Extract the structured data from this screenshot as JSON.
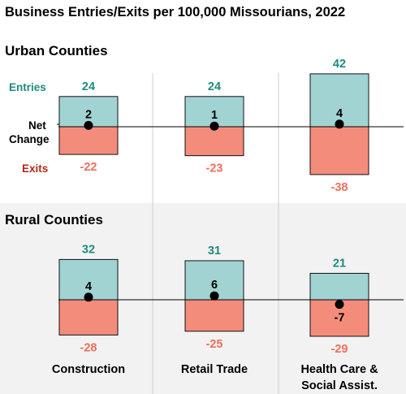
{
  "chart_data": {
    "type": "bar",
    "title": "Business Entries/Exits per 100,000 Missourians, 2022",
    "categories": [
      "Construction",
      "Retail Trade",
      "Health Care & Social Assist."
    ],
    "category_lines": [
      [
        "Construction"
      ],
      [
        "Retail Trade"
      ],
      [
        "Health Care &",
        "Social Assist."
      ]
    ],
    "legend": {
      "entries": "Entries",
      "net_line1": "Net",
      "net_line2": "Change",
      "exits": "Exits"
    },
    "panels": [
      {
        "name": "Urban Counties",
        "series": [
          {
            "name": "Entries",
            "values": [
              24,
              24,
              42
            ]
          },
          {
            "name": "Exits",
            "values": [
              -22,
              -23,
              -38
            ]
          },
          {
            "name": "Net Change",
            "values": [
              2,
              1,
              4
            ]
          }
        ]
      },
      {
        "name": "Rural Counties",
        "series": [
          {
            "name": "Entries",
            "values": [
              32,
              31,
              21
            ]
          },
          {
            "name": "Exits",
            "values": [
              -28,
              -25,
              -29
            ]
          },
          {
            "name": "Net Change",
            "values": [
              4,
              6,
              -7
            ]
          }
        ]
      }
    ],
    "colors": {
      "entries_fill": "#a1d3d3",
      "exits_fill": "#f48c7c",
      "entries_text": "#1f8a80",
      "exits_text": "#f26d5b",
      "exits_legend_text": "#b22a1a",
      "rural_background": "#f2f2f2",
      "divider": "#cccccc"
    }
  }
}
